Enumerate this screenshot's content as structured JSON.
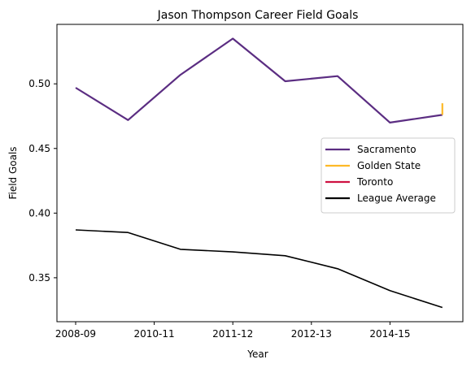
{
  "chart_data": {
    "type": "line",
    "title": "Jason Thompson  Career Field Goals",
    "xlabel": "Year",
    "ylabel": "Field Goals",
    "x_tick_labels": [
      "2008-09",
      "2010-11",
      "2011-12",
      "2012-13",
      "2014-15"
    ],
    "y_ticks": [
      "0.35",
      "0.40",
      "0.45",
      "0.50"
    ],
    "ylim": [
      0.316,
      0.546
    ],
    "grid": false,
    "legend_placement": "center-right",
    "series": [
      {
        "name": "Sacramento",
        "color": "#5b2d82",
        "points": [
          {
            "x": 0,
            "y": 0.497
          },
          {
            "x": 1,
            "y": 0.472
          },
          {
            "x": 2,
            "y": 0.507
          },
          {
            "x": 3,
            "y": 0.535
          },
          {
            "x": 4,
            "y": 0.502
          },
          {
            "x": 5,
            "y": 0.506
          },
          {
            "x": 6,
            "y": 0.47
          },
          {
            "x": 7,
            "y": 0.476
          }
        ]
      },
      {
        "name": "Golden State",
        "color": "#fdb927",
        "points": [
          {
            "x": 7,
            "y": 0.476
          },
          {
            "x": 7,
            "y": 0.485
          }
        ]
      },
      {
        "name": "Toronto",
        "color": "#ce1141",
        "points": []
      },
      {
        "name": "League Average",
        "color": "#000000",
        "points": [
          {
            "x": 0,
            "y": 0.387
          },
          {
            "x": 1,
            "y": 0.385
          },
          {
            "x": 2,
            "y": 0.372
          },
          {
            "x": 3,
            "y": 0.37
          },
          {
            "x": 4,
            "y": 0.367
          },
          {
            "x": 5,
            "y": 0.357
          },
          {
            "x": 6,
            "y": 0.34
          },
          {
            "x": 7,
            "y": 0.327
          }
        ]
      }
    ]
  }
}
